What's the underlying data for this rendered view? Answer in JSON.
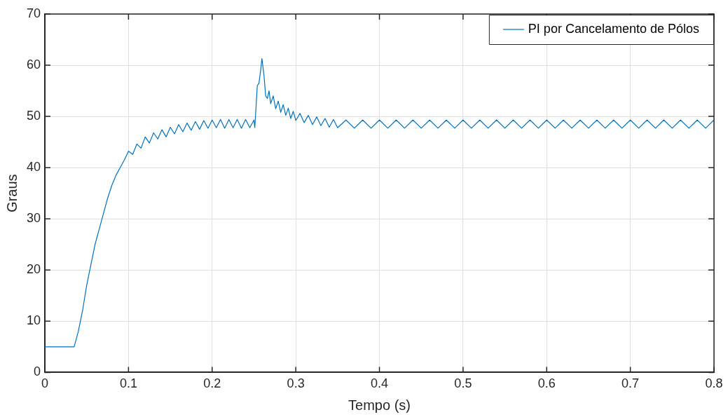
{
  "chart_data": {
    "type": "line",
    "xlabel": "Tempo (s)",
    "ylabel": "Graus",
    "xlim": [
      0,
      0.8
    ],
    "ylim": [
      0,
      70
    ],
    "xticks": [
      0,
      0.1,
      0.2,
      0.3,
      0.4,
      0.5,
      0.6,
      0.7,
      0.8
    ],
    "yticks": [
      0,
      10,
      20,
      30,
      40,
      50,
      60,
      70
    ],
    "grid": true,
    "legend": "top right",
    "marker": "none",
    "line_style": "solid",
    "series": [
      {
        "name": "PI por Cancelamento de Pólos",
        "color": "#0072bd",
        "x": [
          0,
          0.035,
          0.04,
          0.045,
          0.05,
          0.055,
          0.06,
          0.065,
          0.07,
          0.075,
          0.08,
          0.085,
          0.09,
          0.095,
          0.1,
          0.105,
          0.11,
          0.115,
          0.12,
          0.125,
          0.13,
          0.135,
          0.14,
          0.145,
          0.15,
          0.155,
          0.16,
          0.165,
          0.17,
          0.175,
          0.18,
          0.185,
          0.19,
          0.195,
          0.2,
          0.205,
          0.21,
          0.215,
          0.22,
          0.225,
          0.23,
          0.235,
          0.24,
          0.245,
          0.25,
          0.251,
          0.254,
          0.256,
          0.258,
          0.2595,
          0.262,
          0.264,
          0.266,
          0.268,
          0.27,
          0.273,
          0.276,
          0.279,
          0.282,
          0.285,
          0.288,
          0.291,
          0.294,
          0.297,
          0.3,
          0.305,
          0.31,
          0.315,
          0.32,
          0.325,
          0.33,
          0.335,
          0.34,
          0.345,
          0.35,
          0.36,
          0.37,
          0.38,
          0.39,
          0.4,
          0.41,
          0.42,
          0.43,
          0.44,
          0.45,
          0.46,
          0.47,
          0.48,
          0.49,
          0.5,
          0.51,
          0.52,
          0.53,
          0.54,
          0.55,
          0.56,
          0.57,
          0.58,
          0.59,
          0.6,
          0.61,
          0.62,
          0.63,
          0.64,
          0.65,
          0.66,
          0.67,
          0.68,
          0.69,
          0.7,
          0.71,
          0.72,
          0.73,
          0.74,
          0.75,
          0.76,
          0.77,
          0.78,
          0.79,
          0.8
        ],
        "values": [
          5,
          5,
          8,
          12,
          17,
          21,
          25,
          28,
          31,
          34,
          36.5,
          38.5,
          40,
          41.5,
          43.2,
          42.6,
          44.6,
          43.8,
          46,
          44.8,
          46.8,
          45.6,
          47.4,
          46,
          47.9,
          46.6,
          48.4,
          47,
          48.7,
          47.3,
          49,
          47.5,
          49.2,
          47.7,
          49.3,
          47.8,
          49.4,
          47.7,
          49.4,
          47.8,
          49.4,
          47.7,
          49.4,
          47.8,
          49.3,
          47.8,
          56,
          56.5,
          59,
          61.3,
          58,
          54,
          53.5,
          55,
          52.5,
          54,
          51.5,
          53,
          50.8,
          52.3,
          50.2,
          51.6,
          49.6,
          51,
          49.2,
          50.6,
          48.8,
          50.2,
          48.4,
          49.9,
          48.2,
          49.6,
          47.9,
          49.4,
          47.8,
          49.3,
          47.7,
          49.3,
          47.7,
          49.3,
          47.7,
          49.3,
          47.7,
          49.3,
          47.7,
          49.3,
          47.7,
          49.3,
          47.7,
          49.3,
          47.7,
          49.3,
          47.7,
          49.3,
          47.7,
          49.3,
          47.7,
          49.3,
          47.7,
          49.3,
          47.7,
          49.3,
          47.7,
          49.3,
          47.7,
          49.3,
          47.7,
          49.3,
          47.7,
          49.3,
          47.7,
          49.3,
          47.7,
          49.3,
          47.7,
          49.3,
          47.7,
          49.3,
          47.7,
          49.3
        ]
      }
    ]
  }
}
